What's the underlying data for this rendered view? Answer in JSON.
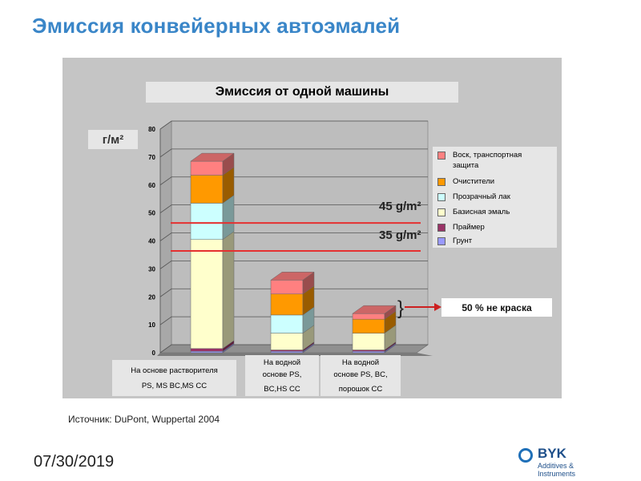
{
  "slide_title": "Эмиссия конвейерных автоэмалей",
  "unit": "г/м²",
  "reference_lines": [
    {
      "label": "45 g/m²",
      "value": 45
    },
    {
      "label": "35 g/m²",
      "value": 35
    }
  ],
  "note": "50 % не краска",
  "source": "Источник: DuPont, Wuppertal 2004",
  "date": "07/30/2019",
  "logo": {
    "word": "BYK",
    "sub": "Additives & Instruments"
  },
  "colors": {
    "panel": "#c5c5c5",
    "title": "#3a86c8",
    "reference_line": "#e53030"
  },
  "chart_data": {
    "type": "bar",
    "stacked": true,
    "three_d": true,
    "title": "Эмиссия от одной машины",
    "ylabel": "г/м²",
    "ylim": [
      0,
      80
    ],
    "yticks": [
      "0",
      "10",
      "20",
      "30",
      "40",
      "50",
      "60",
      "70",
      "80"
    ],
    "grid": true,
    "legend_position": "right",
    "categories": [
      [
        "На основе растворителя",
        "PS, MS BC,MS CC"
      ],
      [
        "На водной",
        "основе PS,",
        "BC,HS CC"
      ],
      [
        "На водной",
        "основе PS, BC,",
        "порошок CC"
      ]
    ],
    "series": [
      {
        "name": "Грунт",
        "color": "#9999ff",
        "values": [
          0.5,
          0.5,
          0.5
        ]
      },
      {
        "name": "Праймер",
        "color": "#993366",
        "values": [
          1.0,
          0.5,
          0.5
        ]
      },
      {
        "name": "Базисная эмаль",
        "color": "#ffffcc",
        "values": [
          39.0,
          6.0,
          6.0
        ]
      },
      {
        "name": "Прозрачный лак",
        "color": "#ccffff",
        "values": [
          13.0,
          6.5,
          0.0
        ]
      },
      {
        "name": "Очистители",
        "color": "#ff9900",
        "values": [
          10.0,
          7.5,
          5.0
        ]
      },
      {
        "name": "Воск, транспортная защита",
        "color": "#ff8080",
        "values": [
          5.0,
          5.0,
          2.0
        ]
      }
    ]
  }
}
